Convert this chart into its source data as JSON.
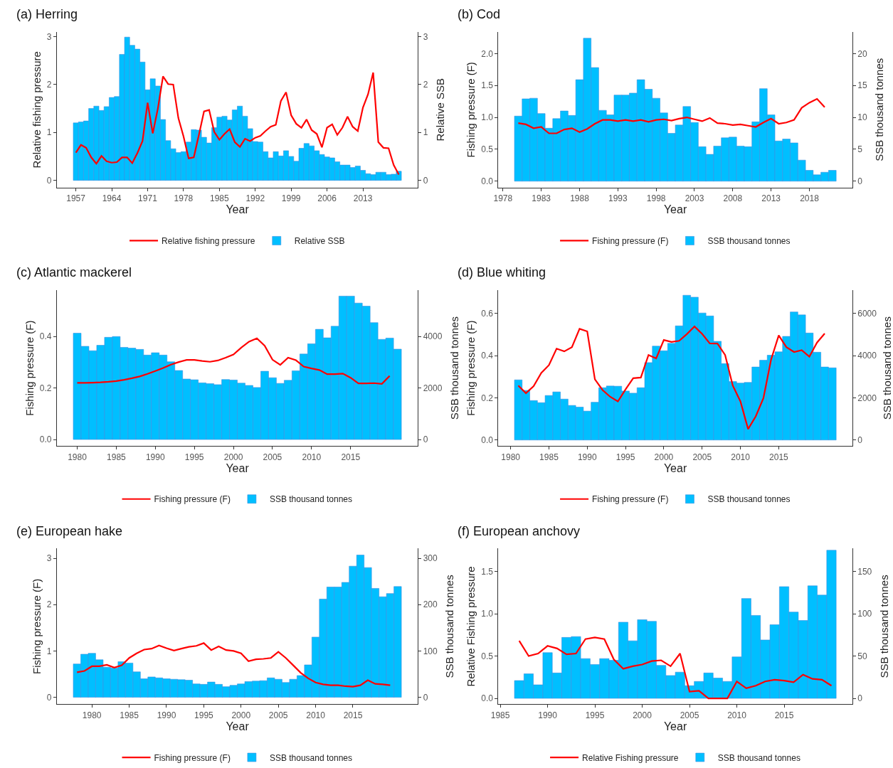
{
  "chart_data": [
    {
      "type": "bar",
      "title": "(a) Herring",
      "xlabel": "Year",
      "ylabel": "Relative fishing pressure",
      "y2label": "Relative SSB",
      "legend": "bottom",
      "xlim": [
        1953.3,
        2023.7
      ],
      "xticks": [
        1957,
        1964,
        1971,
        1978,
        1985,
        1992,
        1999,
        2006,
        2013
      ],
      "ylim": [
        -0.15,
        3.1
      ],
      "yticks": [
        0,
        1,
        2,
        3
      ],
      "y2lim": [
        -0.15,
        3.1
      ],
      "y2ticks": [
        0,
        1,
        2,
        3
      ],
      "series": [
        {
          "name": "Relative fishing pressure",
          "type": "line",
          "axis": "y",
          "color": "#ff0000",
          "x": [
            1957,
            1958,
            1959,
            1960,
            1961,
            1962,
            1963,
            1964,
            1965,
            1966,
            1967,
            1968,
            1969,
            1970,
            1971,
            1972,
            1973,
            1974,
            1975,
            1976,
            1977,
            1978,
            1979,
            1980,
            1981,
            1982,
            1983,
            1984,
            1985,
            1986,
            1987,
            1988,
            1989,
            1990,
            1991,
            1992,
            1993,
            1994,
            1995,
            1996,
            1997,
            1998,
            1999,
            2000,
            2001,
            2002,
            2003,
            2004,
            2005,
            2006,
            2007,
            2008,
            2009,
            2010,
            2011,
            2012,
            2013,
            2014,
            2015,
            2016,
            2017,
            2018,
            2019,
            2020
          ],
          "values": [
            0.58,
            0.74,
            0.68,
            0.48,
            0.35,
            0.51,
            0.4,
            0.37,
            0.38,
            0.48,
            0.48,
            0.36,
            0.57,
            0.82,
            1.62,
            0.98,
            1.5,
            2.17,
            2.01,
            2.0,
            1.3,
            0.92,
            0.46,
            0.48,
            0.95,
            1.44,
            1.47,
            1.01,
            0.85,
            0.97,
            1.07,
            0.8,
            0.7,
            0.87,
            0.82,
            0.89,
            0.93,
            1.03,
            1.12,
            1.16,
            1.66,
            1.84,
            1.36,
            1.18,
            1.1,
            1.27,
            1.05,
            0.97,
            0.69,
            1.1,
            1.17,
            0.95,
            1.1,
            1.33,
            1.12,
            1.03,
            1.52,
            1.8,
            2.25,
            0.8,
            0.68,
            0.67,
            0.32,
            0.12
          ]
        },
        {
          "name": "Relative SSB",
          "axis": "y2",
          "color": "#00bfff",
          "x": [
            1957,
            1958,
            1959,
            1960,
            1961,
            1962,
            1963,
            1964,
            1965,
            1966,
            1967,
            1968,
            1969,
            1970,
            1971,
            1972,
            1973,
            1974,
            1975,
            1976,
            1977,
            1978,
            1979,
            1980,
            1981,
            1982,
            1983,
            1984,
            1985,
            1986,
            1987,
            1988,
            1989,
            1990,
            1991,
            1992,
            1993,
            1994,
            1995,
            1996,
            1997,
            1998,
            1999,
            2000,
            2001,
            2002,
            2003,
            2004,
            2005,
            2006,
            2007,
            2008,
            2009,
            2010,
            2011,
            2012,
            2013,
            2014,
            2015,
            2016,
            2017,
            2018,
            2019,
            2020
          ],
          "values": [
            1.2,
            1.22,
            1.24,
            1.5,
            1.55,
            1.46,
            1.54,
            1.73,
            1.75,
            2.63,
            2.99,
            2.82,
            2.74,
            2.47,
            1.89,
            2.12,
            1.97,
            1.27,
            0.83,
            0.66,
            0.58,
            0.6,
            0.8,
            1.06,
            1.05,
            0.9,
            0.78,
            1.1,
            1.32,
            1.34,
            1.26,
            1.47,
            1.55,
            1.34,
            1.08,
            0.81,
            0.8,
            0.6,
            0.47,
            0.6,
            0.51,
            0.62,
            0.5,
            0.4,
            0.67,
            0.77,
            0.72,
            0.62,
            0.54,
            0.49,
            0.47,
            0.39,
            0.32,
            0.32,
            0.27,
            0.3,
            0.21,
            0.14,
            0.12,
            0.17,
            0.17,
            0.12,
            0.13,
            0.19
          ]
        }
      ]
    },
    {
      "type": "bar",
      "title": "(b) Cod",
      "xlabel": "Year",
      "ylabel": "Fishing pressure (F)",
      "y2label": "SSB thousand tonnes",
      "legend": "bottom",
      "xlim": [
        1977.4,
        2023.6
      ],
      "xticks": [
        1978,
        1983,
        1988,
        1993,
        1998,
        2003,
        2008,
        2013,
        2018
      ],
      "ylim": [
        -0.1,
        2.34
      ],
      "yticks": [
        {
          "value": 0,
          "label": "0.0"
        },
        {
          "value": 0.5,
          "label": "0.5"
        },
        {
          "value": 1,
          "label": "1.0"
        },
        {
          "value": 1.5,
          "label": "1.5"
        },
        {
          "value": 2,
          "label": "2.0"
        }
      ],
      "y2lim": [
        -1.0,
        23.4
      ],
      "y2ticks": [
        0,
        5,
        10,
        15,
        20
      ],
      "series": [
        {
          "name": "Fishing pressure (F)",
          "type": "line",
          "axis": "y",
          "color": "#ff0000",
          "x": [
            1980,
            1981,
            1982,
            1983,
            1984,
            1985,
            1986,
            1987,
            1988,
            1989,
            1990,
            1991,
            1992,
            1993,
            1994,
            1995,
            1996,
            1997,
            1998,
            1999,
            2000,
            2001,
            2002,
            2003,
            2004,
            2005,
            2006,
            2007,
            2008,
            2009,
            2010,
            2011,
            2012,
            2013,
            2014,
            2015,
            2016,
            2017,
            2018,
            2019,
            2020
          ],
          "values": [
            0.91,
            0.89,
            0.83,
            0.85,
            0.75,
            0.75,
            0.81,
            0.83,
            0.77,
            0.82,
            0.9,
            0.96,
            0.96,
            0.94,
            0.96,
            0.94,
            0.96,
            0.93,
            0.96,
            0.97,
            0.95,
            0.98,
            1.0,
            0.97,
            0.94,
            0.99,
            0.91,
            0.9,
            0.88,
            0.89,
            0.87,
            0.85,
            0.92,
            0.98,
            0.9,
            0.92,
            0.96,
            1.15,
            1.23,
            1.29,
            1.16
          ]
        },
        {
          "name": "SSB thousand tonnes",
          "axis": "y2",
          "color": "#00bfff",
          "x": [
            1980,
            1981,
            1982,
            1983,
            1984,
            1985,
            1986,
            1987,
            1988,
            1989,
            1990,
            1991,
            1992,
            1993,
            1994,
            1995,
            1996,
            1997,
            1998,
            1999,
            2000,
            2001,
            2002,
            2003,
            2004,
            2005,
            2006,
            2007,
            2008,
            2009,
            2010,
            2011,
            2012,
            2013,
            2014,
            2015,
            2016,
            2017,
            2018,
            2019,
            2020,
            2021
          ],
          "values": [
            10.2,
            12.9,
            13.0,
            10.6,
            8.3,
            9.8,
            11.0,
            10.3,
            15.9,
            22.4,
            17.8,
            11.1,
            10.4,
            13.5,
            13.5,
            13.8,
            15.9,
            14.4,
            13.0,
            10.7,
            7.5,
            8.8,
            11.7,
            9.2,
            5.4,
            4.2,
            5.5,
            6.8,
            6.9,
            5.5,
            5.4,
            9.3,
            14.5,
            10.4,
            6.3,
            6.6,
            6.0,
            3.3,
            1.7,
            1.0,
            1.4,
            1.7
          ]
        }
      ]
    },
    {
      "type": "bar",
      "title": "(c) Atlantic mackerel",
      "xlabel": "Year",
      "ylabel": "Fishing pressure (F)",
      "y2label": "SSB thousand tonnes",
      "legend": "bottom",
      "xlim": [
        1977.4,
        2023.6
      ],
      "xticks": [
        1980,
        1985,
        1990,
        1995,
        2000,
        2005,
        2010,
        2015
      ],
      "ylim": [
        -0.025,
        0.58
      ],
      "yticks": [
        {
          "value": 0,
          "label": "0.0"
        },
        {
          "value": 0.2,
          "label": "0.2"
        },
        {
          "value": 0.4,
          "label": "0.4"
        }
      ],
      "y2lim": [
        -250,
        5800
      ],
      "y2ticks": [
        0,
        2000,
        4000
      ],
      "series": [
        {
          "name": "Fishing pressure (F)",
          "type": "line",
          "axis": "y",
          "color": "#ff0000",
          "x": [
            1980,
            1981,
            1982,
            1983,
            1984,
            1985,
            1986,
            1987,
            1988,
            1989,
            1990,
            1991,
            1992,
            1993,
            1994,
            1995,
            1996,
            1997,
            1998,
            1999,
            2000,
            2001,
            2002,
            2003,
            2004,
            2005,
            2006,
            2007,
            2008,
            2009,
            2010,
            2011,
            2012,
            2013,
            2014,
            2015,
            2016,
            2017,
            2018,
            2019,
            2020
          ],
          "values": [
            0.22,
            0.22,
            0.221,
            0.222,
            0.224,
            0.227,
            0.232,
            0.238,
            0.245,
            0.255,
            0.266,
            0.278,
            0.291,
            0.301,
            0.309,
            0.309,
            0.305,
            0.302,
            0.307,
            0.318,
            0.33,
            0.357,
            0.38,
            0.393,
            0.364,
            0.31,
            0.29,
            0.318,
            0.308,
            0.283,
            0.276,
            0.27,
            0.254,
            0.254,
            0.256,
            0.24,
            0.218,
            0.218,
            0.219,
            0.216,
            0.247
          ]
        },
        {
          "name": "SSB thousand tonnes",
          "axis": "y2",
          "color": "#00bfff",
          "x": [
            1980,
            1981,
            1982,
            1983,
            1984,
            1985,
            1986,
            1987,
            1988,
            1989,
            1990,
            1991,
            1992,
            1993,
            1994,
            1995,
            1996,
            1997,
            1998,
            1999,
            2000,
            2001,
            2002,
            2003,
            2004,
            2005,
            2006,
            2007,
            2008,
            2009,
            2010,
            2011,
            2012,
            2013,
            2014,
            2015,
            2016,
            2017,
            2018,
            2019,
            2020,
            2021
          ],
          "values": [
            4130,
            3620,
            3450,
            3660,
            3970,
            4000,
            3580,
            3550,
            3500,
            3280,
            3370,
            3280,
            3020,
            2680,
            2350,
            2320,
            2200,
            2170,
            2130,
            2330,
            2310,
            2190,
            2100,
            2020,
            2650,
            2400,
            2180,
            2300,
            2670,
            3320,
            3720,
            4280,
            3950,
            4400,
            5570,
            5570,
            5300,
            5180,
            4540,
            3890,
            3940,
            3510
          ]
        }
      ]
    },
    {
      "type": "bar",
      "title": "(d) Blue whiting",
      "xlabel": "Year",
      "ylabel": "Fishing pressure (F)",
      "y2label": "SSB thousand tonnes",
      "legend": "bottom",
      "xlim": [
        1978.4,
        2024.6
      ],
      "xticks": [
        1980,
        1985,
        1990,
        1995,
        2000,
        2005,
        2010,
        2015
      ],
      "ylim": [
        -0.028,
        0.71
      ],
      "yticks": [
        {
          "value": 0,
          "label": "0.0"
        },
        {
          "value": 0.2,
          "label": "0.2"
        },
        {
          "value": 0.4,
          "label": "0.4"
        },
        {
          "value": 0.6,
          "label": "0.6"
        }
      ],
      "y2lim": [
        -280,
        7100
      ],
      "y2ticks": [
        0,
        2000,
        4000,
        6000
      ],
      "series": [
        {
          "name": "Fishing pressure (F)",
          "type": "line",
          "axis": "y",
          "color": "#ff0000",
          "x": [
            1981,
            1982,
            1983,
            1984,
            1985,
            1986,
            1987,
            1988,
            1989,
            1990,
            1991,
            1992,
            1993,
            1994,
            1995,
            1996,
            1997,
            1998,
            1999,
            2000,
            2001,
            2002,
            2003,
            2004,
            2005,
            2006,
            2007,
            2008,
            2009,
            2010,
            2011,
            2012,
            2013,
            2014,
            2015,
            2016,
            2017,
            2018,
            2019,
            2020,
            2021
          ],
          "values": [
            0.258,
            0.222,
            0.255,
            0.318,
            0.355,
            0.433,
            0.42,
            0.44,
            0.527,
            0.515,
            0.288,
            0.237,
            0.205,
            0.183,
            0.24,
            0.293,
            0.296,
            0.403,
            0.387,
            0.474,
            0.465,
            0.47,
            0.502,
            0.538,
            0.503,
            0.458,
            0.457,
            0.403,
            0.258,
            0.183,
            0.052,
            0.112,
            0.198,
            0.381,
            0.496,
            0.44,
            0.417,
            0.426,
            0.395,
            0.462,
            0.505
          ]
        },
        {
          "name": "SSB thousand tonnes",
          "axis": "y2",
          "color": "#00bfff",
          "x": [
            1981,
            1982,
            1983,
            1984,
            1985,
            1986,
            1987,
            1988,
            1989,
            1990,
            1991,
            1992,
            1993,
            1994,
            1995,
            1996,
            1997,
            1998,
            1999,
            2000,
            2001,
            2002,
            2003,
            2004,
            2005,
            2006,
            2007,
            2008,
            2009,
            2010,
            2011,
            2012,
            2013,
            2014,
            2015,
            2016,
            2017,
            2018,
            2019,
            2020,
            2021,
            2022
          ],
          "values": [
            2850,
            2350,
            1870,
            1770,
            2110,
            2280,
            1940,
            1640,
            1560,
            1370,
            1790,
            2480,
            2560,
            2550,
            2320,
            2220,
            2480,
            3670,
            4450,
            4230,
            4580,
            5410,
            6860,
            6770,
            6020,
            5880,
            4680,
            3620,
            2770,
            2700,
            2730,
            3460,
            3780,
            4020,
            4180,
            4910,
            6070,
            5930,
            5070,
            4160,
            3460,
            3420
          ]
        }
      ]
    },
    {
      "type": "bar",
      "title": "(e) European hake",
      "xlabel": "Year",
      "ylabel": "Fishing pressure (F)",
      "y2label": "SSB thousand tonnes",
      "legend": "bottom",
      "xlim": [
        1975.3,
        2023.7
      ],
      "xticks": [
        1980,
        1985,
        1990,
        1995,
        2000,
        2005,
        2010,
        2015
      ],
      "ylim": [
        -0.15,
        3.21
      ],
      "yticks": [
        0,
        1,
        2,
        3
      ],
      "y2lim": [
        -15,
        321
      ],
      "y2ticks": [
        0,
        100,
        200,
        300
      ],
      "series": [
        {
          "name": "Fishing pressure (F)",
          "type": "line",
          "axis": "y",
          "color": "#ff0000",
          "x": [
            1978,
            1979,
            1980,
            1981,
            1982,
            1983,
            1984,
            1985,
            1986,
            1987,
            1988,
            1989,
            1990,
            1991,
            1992,
            1993,
            1994,
            1995,
            1996,
            1997,
            1998,
            1999,
            2000,
            2001,
            2002,
            2003,
            2004,
            2005,
            2006,
            2007,
            2008,
            2009,
            2010,
            2011,
            2012,
            2013,
            2014,
            2015,
            2016,
            2017,
            2018,
            2019,
            2020
          ],
          "values": [
            0.54,
            0.57,
            0.67,
            0.67,
            0.7,
            0.64,
            0.69,
            0.85,
            0.95,
            1.03,
            1.05,
            1.12,
            1.06,
            1.01,
            1.05,
            1.09,
            1.11,
            1.17,
            1.02,
            1.1,
            1.02,
            1.0,
            0.95,
            0.78,
            0.82,
            0.83,
            0.85,
            0.98,
            0.85,
            0.69,
            0.53,
            0.41,
            0.32,
            0.28,
            0.26,
            0.26,
            0.24,
            0.23,
            0.26,
            0.37,
            0.29,
            0.28,
            0.26
          ]
        },
        {
          "name": "SSB thousand tonnes",
          "axis": "y2",
          "color": "#00bfff",
          "x": [
            1978,
            1979,
            1980,
            1981,
            1982,
            1983,
            1984,
            1985,
            1986,
            1987,
            1988,
            1989,
            1990,
            1991,
            1992,
            1993,
            1994,
            1995,
            1996,
            1997,
            1998,
            1999,
            2000,
            2001,
            2002,
            2003,
            2004,
            2005,
            2006,
            2007,
            2008,
            2009,
            2010,
            2011,
            2012,
            2013,
            2014,
            2015,
            2016,
            2017,
            2018,
            2019,
            2020,
            2021
          ],
          "values": [
            72,
            93,
            95,
            81,
            65,
            63,
            77,
            74,
            55,
            40,
            44,
            42,
            40,
            39,
            38,
            37,
            29,
            28,
            33,
            28,
            23,
            26,
            29,
            34,
            35,
            36,
            42,
            39,
            32,
            39,
            47,
            70,
            130,
            212,
            238,
            238,
            248,
            283,
            307,
            280,
            235,
            217,
            224,
            239
          ]
        }
      ]
    },
    {
      "type": "bar",
      "title": "(f) European anchovy",
      "xlabel": "Year",
      "ylabel": "Relative Fishing pressure",
      "y2label": "SSB thousand tonnes",
      "legend": "bottom",
      "xlim": [
        1984.8,
        2022.2
      ],
      "xticks": [
        1985,
        1990,
        1995,
        2000,
        2005,
        2010,
        2015
      ],
      "ylim": [
        -0.07,
        1.77
      ],
      "yticks": [
        {
          "value": 0,
          "label": "0.0"
        },
        {
          "value": 0.5,
          "label": "0.5"
        },
        {
          "value": 1,
          "label": "1.0"
        },
        {
          "value": 1.5,
          "label": "1.5"
        }
      ],
      "y2lim": [
        -7,
        177
      ],
      "y2ticks": [
        0,
        50,
        100,
        150
      ],
      "series": [
        {
          "name": "Relative Fishing pressure",
          "type": "line",
          "axis": "y",
          "color": "#ff0000",
          "x": [
            1987,
            1988,
            1989,
            1990,
            1991,
            1992,
            1993,
            1994,
            1995,
            1996,
            1997,
            1998,
            1999,
            2000,
            2001,
            2002,
            2003,
            2004,
            2005,
            2006,
            2007,
            2008,
            2009,
            2010,
            2011,
            2012,
            2013,
            2014,
            2015,
            2016,
            2017,
            2018,
            2019,
            2020
          ],
          "values": [
            0.68,
            0.5,
            0.53,
            0.62,
            0.59,
            0.52,
            0.53,
            0.7,
            0.72,
            0.7,
            0.46,
            0.35,
            0.38,
            0.4,
            0.44,
            0.45,
            0.38,
            0.53,
            0.08,
            0.09,
            0.0,
            0.0,
            0.0,
            0.2,
            0.12,
            0.15,
            0.2,
            0.22,
            0.21,
            0.19,
            0.28,
            0.23,
            0.22,
            0.15
          ]
        },
        {
          "name": "SSB thousand tonnes",
          "axis": "y2",
          "color": "#00bfff",
          "x": [
            1987,
            1988,
            1989,
            1990,
            1991,
            1992,
            1993,
            1994,
            1995,
            1996,
            1997,
            1998,
            1999,
            2000,
            2001,
            2002,
            2003,
            2004,
            2005,
            2006,
            2007,
            2008,
            2009,
            2010,
            2011,
            2012,
            2013,
            2014,
            2015,
            2016,
            2017,
            2018,
            2019,
            2020
          ],
          "values": [
            21,
            29,
            16,
            54,
            30,
            72,
            73,
            47,
            40,
            47,
            45,
            90,
            68,
            93,
            91,
            39,
            27,
            31,
            15,
            20,
            30,
            24,
            20,
            49,
            118,
            98,
            69,
            87,
            132,
            102,
            92,
            133,
            122,
            175
          ]
        }
      ]
    }
  ]
}
